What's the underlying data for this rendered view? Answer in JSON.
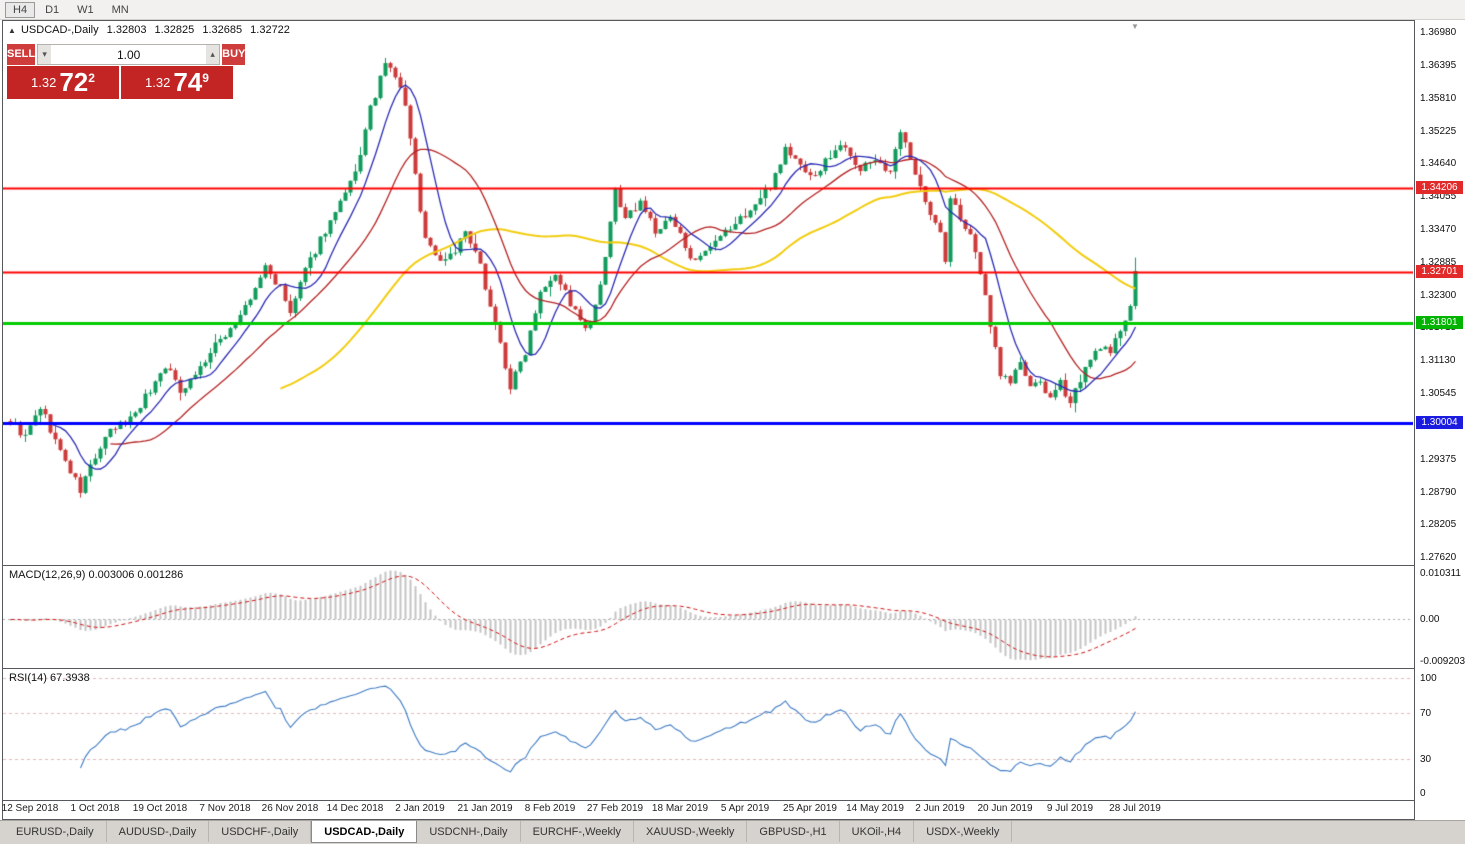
{
  "toolbar": {
    "buttons": [
      {
        "label": "H4",
        "active": true
      },
      {
        "label": "D1",
        "active": false
      },
      {
        "label": "W1",
        "active": false
      },
      {
        "label": "MN",
        "active": false
      }
    ]
  },
  "chart_header": {
    "symbol": "USDCAD-,Daily",
    "open": "1.32803",
    "high": "1.32825",
    "low": "1.32685",
    "close": "1.32722"
  },
  "one_click": {
    "sell_label": "SELL",
    "buy_label": "BUY",
    "volume": "1.00",
    "bid_main": "1.32",
    "bid_big": "72",
    "bid_sup": "2",
    "ask_main": "1.32",
    "ask_big": "74",
    "ask_sup": "9"
  },
  "price_axis": {
    "labels": [
      "1.36980",
      "1.36395",
      "1.35810",
      "1.35225",
      "1.34640",
      "1.34055",
      "1.33470",
      "1.32885",
      "1.32300",
      "1.31715",
      "1.31130",
      "1.30545",
      "1.29960",
      "1.29375",
      "1.28790",
      "1.28205",
      "1.27620"
    ]
  },
  "hlines": [
    {
      "price": 1.34206,
      "label": "1.34206",
      "color": "#ff0000",
      "width": 2,
      "tag_bg": "#e22a2a"
    },
    {
      "price": 1.32701,
      "label": "1.32701",
      "color": "#ff0000",
      "width": 2,
      "tag_bg": "#e22a2a"
    },
    {
      "price": 1.31801,
      "label": "1.31801",
      "color": "#00cc00",
      "width": 3,
      "tag_bg": "#00b400"
    },
    {
      "price": 1.30004,
      "label": "1.30004",
      "color": "#0000ff",
      "width": 3,
      "tag_bg": "#1c1ce0"
    }
  ],
  "macd_panel": {
    "label": "MACD(12,26,9) 0.003006 0.001286",
    "fast": 12,
    "slow": 26,
    "signal": 9,
    "scale": [
      {
        "v": 0.010311,
        "label": "0.010311"
      },
      {
        "v": 0,
        "label": "0.00"
      },
      {
        "v": -0.009203,
        "label": "-0.009203"
      }
    ]
  },
  "rsi_panel": {
    "label": "RSI(14) 67.3938",
    "period": 14,
    "levels": [
      100,
      70,
      30
    ],
    "scale": [
      {
        "v": 100,
        "label": "100"
      },
      {
        "v": 70,
        "label": "70"
      },
      {
        "v": 30,
        "label": "30"
      },
      {
        "v": 0,
        "label": "0"
      }
    ]
  },
  "date_axis": {
    "first_index": 4,
    "step": 13,
    "labels": [
      "12 Sep 2018",
      "1 Oct 2018",
      "19 Oct 2018",
      "7 Nov 2018",
      "26 Nov 2018",
      "14 Dec 2018",
      "2 Jan 2019",
      "21 Jan 2019",
      "8 Feb 2019",
      "27 Feb 2019",
      "18 Mar 2019",
      "5 Apr 2019",
      "25 Apr 2019",
      "14 May 2019",
      "2 Jun 2019",
      "20 Jun 2019",
      "9 Jul 2019",
      "28 Jul 2019"
    ]
  },
  "tabs": [
    {
      "label": "EURUSD-,Daily",
      "active": false
    },
    {
      "label": "AUDUSD-,Daily",
      "active": false
    },
    {
      "label": "USDCHF-,Daily",
      "active": false
    },
    {
      "label": "USDCAD-,Daily",
      "active": true
    },
    {
      "label": "USDCNH-,Daily",
      "active": false
    },
    {
      "label": "EURCHF-,Weekly",
      "active": false
    },
    {
      "label": "XAUUSD-,Weekly",
      "active": false
    },
    {
      "label": "GBPUSD-,H1",
      "active": false
    },
    {
      "label": "UKOil-,H4",
      "active": false
    },
    {
      "label": "USDX-,Weekly",
      "active": false
    }
  ],
  "chart_data": {
    "type": "candlestick",
    "symbol": "USDCAD",
    "timeframe": "Daily",
    "title": "USDCAD-,Daily 1.32803 1.32825 1.32685 1.32722",
    "n_candles": 226,
    "price_top": 1.3718,
    "price_bottom": 1.2748,
    "last_open": 1.32803,
    "last_high": 1.32825,
    "last_low": 1.32685,
    "last_close": 1.32722,
    "noise": 0.0016,
    "wick": 0.0018,
    "noise_seed": 9,
    "anchors": [
      [
        0,
        1.3005
      ],
      [
        3,
        1.2975
      ],
      [
        6,
        1.303
      ],
      [
        10,
        1.295
      ],
      [
        14,
        1.288
      ],
      [
        16,
        1.2925
      ],
      [
        20,
        1.2985
      ],
      [
        24,
        1.301
      ],
      [
        28,
        1.306
      ],
      [
        31,
        1.3105
      ],
      [
        34,
        1.306
      ],
      [
        38,
        1.31
      ],
      [
        42,
        1.315
      ],
      [
        45,
        1.318
      ],
      [
        48,
        1.322
      ],
      [
        51,
        1.328
      ],
      [
        54,
        1.324
      ],
      [
        56,
        1.3195
      ],
      [
        58,
        1.325
      ],
      [
        62,
        1.333
      ],
      [
        66,
        1.339
      ],
      [
        69,
        1.3445
      ],
      [
        72,
        1.356
      ],
      [
        75,
        1.364
      ],
      [
        77,
        1.362
      ],
      [
        79,
        1.357
      ],
      [
        81,
        1.344
      ],
      [
        83,
        1.333
      ],
      [
        86,
        1.329
      ],
      [
        89,
        1.331
      ],
      [
        91,
        1.334
      ],
      [
        94,
        1.328
      ],
      [
        97,
        1.318
      ],
      [
        100,
        1.3065
      ],
      [
        103,
        1.313
      ],
      [
        106,
        1.324
      ],
      [
        109,
        1.327
      ],
      [
        112,
        1.3215
      ],
      [
        115,
        1.3165
      ],
      [
        117,
        1.3205
      ],
      [
        119,
        1.329
      ],
      [
        121,
        1.342
      ],
      [
        123,
        1.336
      ],
      [
        126,
        1.34
      ],
      [
        129,
        1.334
      ],
      [
        132,
        1.3365
      ],
      [
        135,
        1.332
      ],
      [
        137,
        1.3285
      ],
      [
        140,
        1.331
      ],
      [
        143,
        1.334
      ],
      [
        146,
        1.3365
      ],
      [
        149,
        1.339
      ],
      [
        152,
        1.3425
      ],
      [
        155,
        1.349
      ],
      [
        158,
        1.346
      ],
      [
        161,
        1.344
      ],
      [
        164,
        1.348
      ],
      [
        167,
        1.35
      ],
      [
        170,
        1.345
      ],
      [
        173,
        1.3475
      ],
      [
        176,
        1.3445
      ],
      [
        178,
        1.352
      ],
      [
        180,
        1.347
      ],
      [
        182,
        1.343
      ],
      [
        184,
        1.337
      ],
      [
        186,
        1.334
      ],
      [
        187,
        1.329
      ],
      [
        188,
        1.34
      ],
      [
        190,
        1.337
      ],
      [
        192,
        1.333
      ],
      [
        194,
        1.327
      ],
      [
        196,
        1.318
      ],
      [
        198,
        1.309
      ],
      [
        200,
        1.3075
      ],
      [
        202,
        1.311
      ],
      [
        204,
        1.306
      ],
      [
        206,
        1.3078
      ],
      [
        208,
        1.304
      ],
      [
        210,
        1.307
      ],
      [
        212,
        1.3042
      ],
      [
        214,
        1.308
      ],
      [
        216,
        1.311
      ],
      [
        218,
        1.314
      ],
      [
        220,
        1.3122
      ],
      [
        222,
        1.317
      ],
      [
        224,
        1.3212
      ],
      [
        225,
        1.32722
      ]
    ],
    "ma_periods": {
      "blue": 8,
      "red": 21,
      "yellow": 55
    },
    "overlays": {
      "horizontal_lines": [
        1.34206,
        1.32701,
        1.31801,
        1.30004
      ]
    },
    "indicators": [
      "MACD(12,26,9)",
      "RSI(14)"
    ],
    "x_labels": [
      "12 Sep 2018",
      "1 Oct 2018",
      "19 Oct 2018",
      "7 Nov 2018",
      "26 Nov 2018",
      "14 Dec 2018",
      "2 Jan 2019",
      "21 Jan 2019",
      "8 Feb 2019",
      "27 Feb 2019",
      "18 Mar 2019",
      "5 Apr 2019",
      "25 Apr 2019",
      "14 May 2019",
      "2 Jun 2019",
      "20 Jun 2019",
      "9 Jul 2019",
      "28 Jul 2019"
    ]
  },
  "colors": {
    "candle_up": "#119b5c",
    "candle_down": "#cc3b3b",
    "ma_blue": "#2b2bb5",
    "ma_red": "#b52222",
    "ma_yellow": "#f2cc0f",
    "macd_hist": "#c4c4c4",
    "macd_signal": "#cc1111",
    "rsi_line": "#3f7cc4",
    "rsi_level": "#e6b8b8",
    "oct_button": "#cf3c3c",
    "oct_price": "#c32424"
  }
}
